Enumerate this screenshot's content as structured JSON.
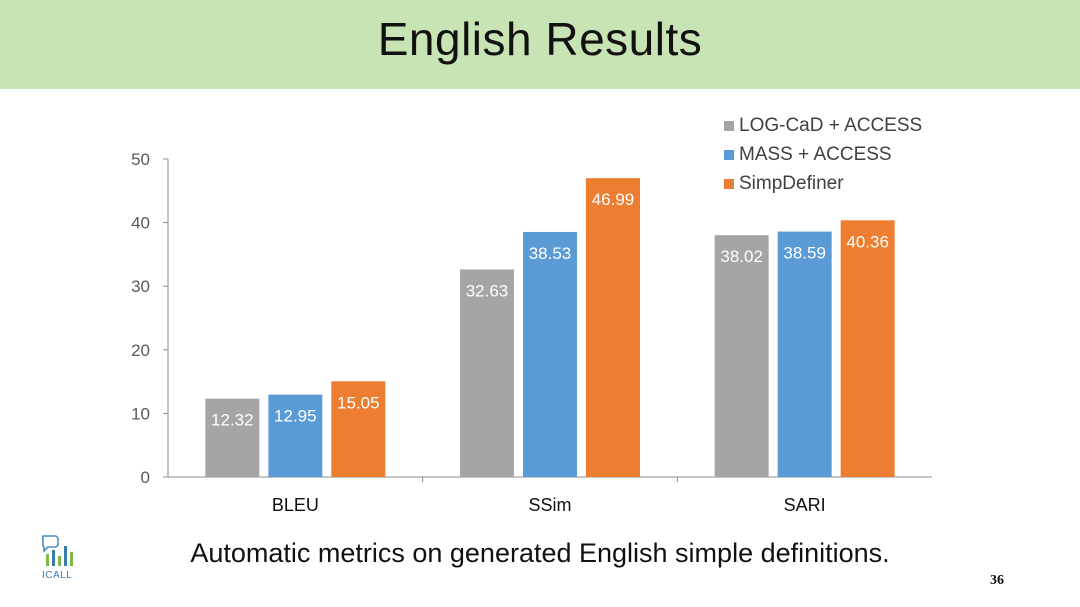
{
  "slide": {
    "title": "English Results",
    "caption": "Automatic metrics on generated English simple definitions.",
    "page_number": "36",
    "logo_text": "ICALL",
    "header_color": "#c8e3b4"
  },
  "chart_data": {
    "type": "bar",
    "categories": [
      "BLEU",
      "SSim",
      "SARI"
    ],
    "series": [
      {
        "name": "LOG-CaD + ACCESS",
        "values": [
          12.32,
          32.63,
          38.02
        ],
        "color": "#a5a5a5"
      },
      {
        "name": "MASS + ACCESS",
        "values": [
          12.95,
          38.53,
          38.59
        ],
        "color": "#5b9bd5"
      },
      {
        "name": "SimpDefiner",
        "values": [
          15.05,
          46.99,
          40.36
        ],
        "color": "#ed7d31"
      }
    ],
    "ylim": [
      0,
      50
    ],
    "yticks": [
      0,
      10,
      20,
      30,
      40,
      50
    ],
    "legend_position": "top-right",
    "grid": false,
    "data_labels": true
  }
}
